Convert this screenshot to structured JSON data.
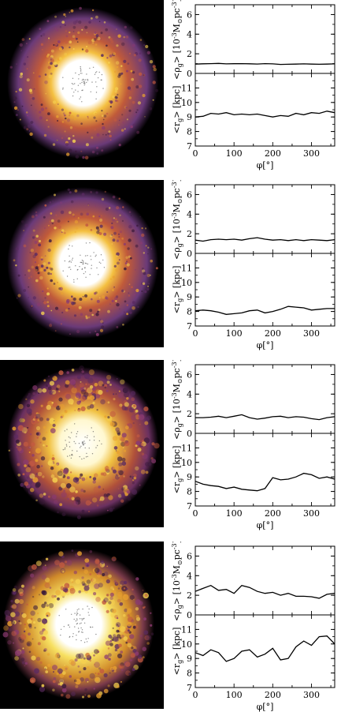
{
  "labels": {
    "rho_ylabel": "<ρ",
    "rho_sub": "g",
    "rho_units": "> [10",
    "rho_exp": "-3",
    "rho_msun": "M",
    "rho_pc": "pc",
    "rho_pcexp": "-3",
    "rho_close": "]",
    "r_ylabel": "<r",
    "r_sub": "g",
    "r_units": "> [kpc]",
    "xlabel": "φ[°]"
  },
  "colors": {
    "line": "#000000",
    "axis": "#000000",
    "galaxy_bg": "#000000",
    "galaxy_core": "#ffffff",
    "galaxy_mid": "#f5d040",
    "galaxy_outer": "#b04a6a"
  },
  "chart_data": [
    {
      "type": "line",
      "panel": 1,
      "x": [
        0,
        20,
        40,
        60,
        80,
        100,
        120,
        140,
        160,
        180,
        200,
        220,
        240,
        260,
        280,
        300,
        320,
        340,
        360
      ],
      "rho": {
        "ylim": [
          0,
          7
        ],
        "yticks": [
          0,
          2,
          4,
          6
        ],
        "values": [
          0.95,
          0.98,
          1.0,
          1.02,
          0.97,
          0.99,
          1.0,
          0.98,
          0.96,
          1.0,
          0.97,
          0.92,
          0.93,
          0.95,
          0.97,
          0.95,
          0.93,
          0.95,
          0.97
        ]
      },
      "r": {
        "ylim": [
          7,
          12
        ],
        "yticks": [
          7,
          8,
          9,
          10,
          11
        ],
        "values": [
          9.0,
          9.05,
          9.25,
          9.2,
          9.3,
          9.15,
          9.2,
          9.15,
          9.2,
          9.1,
          9.0,
          9.1,
          9.05,
          9.25,
          9.15,
          9.3,
          9.25,
          9.4,
          9.3
        ]
      },
      "xlim": [
        0,
        360
      ],
      "xticks": [
        0,
        100,
        200,
        300
      ]
    },
    {
      "type": "line",
      "panel": 2,
      "x": [
        0,
        20,
        40,
        60,
        80,
        100,
        120,
        140,
        160,
        180,
        200,
        220,
        240,
        260,
        280,
        300,
        320,
        340,
        360
      ],
      "rho": {
        "ylim": [
          0,
          7
        ],
        "yticks": [
          0,
          2,
          4,
          6
        ],
        "values": [
          1.35,
          1.25,
          1.4,
          1.45,
          1.4,
          1.45,
          1.35,
          1.5,
          1.6,
          1.45,
          1.35,
          1.4,
          1.3,
          1.4,
          1.3,
          1.4,
          1.35,
          1.3,
          1.4
        ]
      },
      "r": {
        "ylim": [
          7,
          12
        ],
        "yticks": [
          7,
          8,
          9,
          10,
          11
        ],
        "values": [
          8.05,
          8.1,
          8.05,
          7.95,
          7.8,
          7.85,
          7.9,
          8.05,
          8.1,
          7.9,
          8.0,
          8.15,
          8.35,
          8.3,
          8.25,
          8.1,
          8.15,
          8.2,
          8.2
        ]
      },
      "xlim": [
        0,
        360
      ],
      "xticks": [
        0,
        100,
        200,
        300
      ]
    },
    {
      "type": "line",
      "panel": 3,
      "x": [
        0,
        20,
        40,
        60,
        80,
        100,
        120,
        140,
        160,
        180,
        200,
        220,
        240,
        260,
        280,
        300,
        320,
        340,
        360
      ],
      "rho": {
        "ylim": [
          0,
          7
        ],
        "yticks": [
          0,
          2,
          4,
          6
        ],
        "values": [
          1.6,
          1.6,
          1.65,
          1.75,
          1.6,
          1.75,
          1.9,
          1.6,
          1.45,
          1.55,
          1.7,
          1.75,
          1.6,
          1.7,
          1.65,
          1.5,
          1.4,
          1.6,
          1.7
        ]
      },
      "r": {
        "ylim": [
          7,
          12
        ],
        "yticks": [
          7,
          8,
          9,
          10,
          11
        ],
        "values": [
          8.7,
          8.5,
          8.4,
          8.35,
          8.2,
          8.3,
          8.15,
          8.1,
          8.05,
          8.2,
          8.95,
          8.8,
          8.85,
          9.0,
          9.25,
          9.15,
          8.9,
          9.0,
          8.85
        ]
      },
      "xlim": [
        0,
        360
      ],
      "xticks": [
        0,
        100,
        200,
        300
      ]
    },
    {
      "type": "line",
      "panel": 4,
      "x": [
        0,
        20,
        40,
        60,
        80,
        100,
        120,
        140,
        160,
        180,
        200,
        220,
        240,
        260,
        280,
        300,
        320,
        340,
        360
      ],
      "rho": {
        "ylim": [
          0,
          7
        ],
        "yticks": [
          0,
          2,
          4,
          6
        ],
        "values": [
          2.4,
          2.7,
          3.0,
          2.5,
          2.6,
          2.2,
          3.0,
          2.8,
          2.4,
          2.2,
          2.3,
          2.0,
          2.2,
          1.9,
          1.9,
          1.85,
          1.7,
          2.1,
          2.2
        ]
      },
      "r": {
        "ylim": [
          7,
          12
        ],
        "yticks": [
          7,
          8,
          9,
          10,
          11
        ],
        "values": [
          9.4,
          9.2,
          9.6,
          9.4,
          8.8,
          9.0,
          9.5,
          9.6,
          9.1,
          9.3,
          9.7,
          8.9,
          9.0,
          9.8,
          10.2,
          9.9,
          10.5,
          10.55,
          10.0
        ]
      },
      "xlim": [
        0,
        360
      ],
      "xticks": [
        0,
        100,
        200,
        300
      ]
    }
  ]
}
